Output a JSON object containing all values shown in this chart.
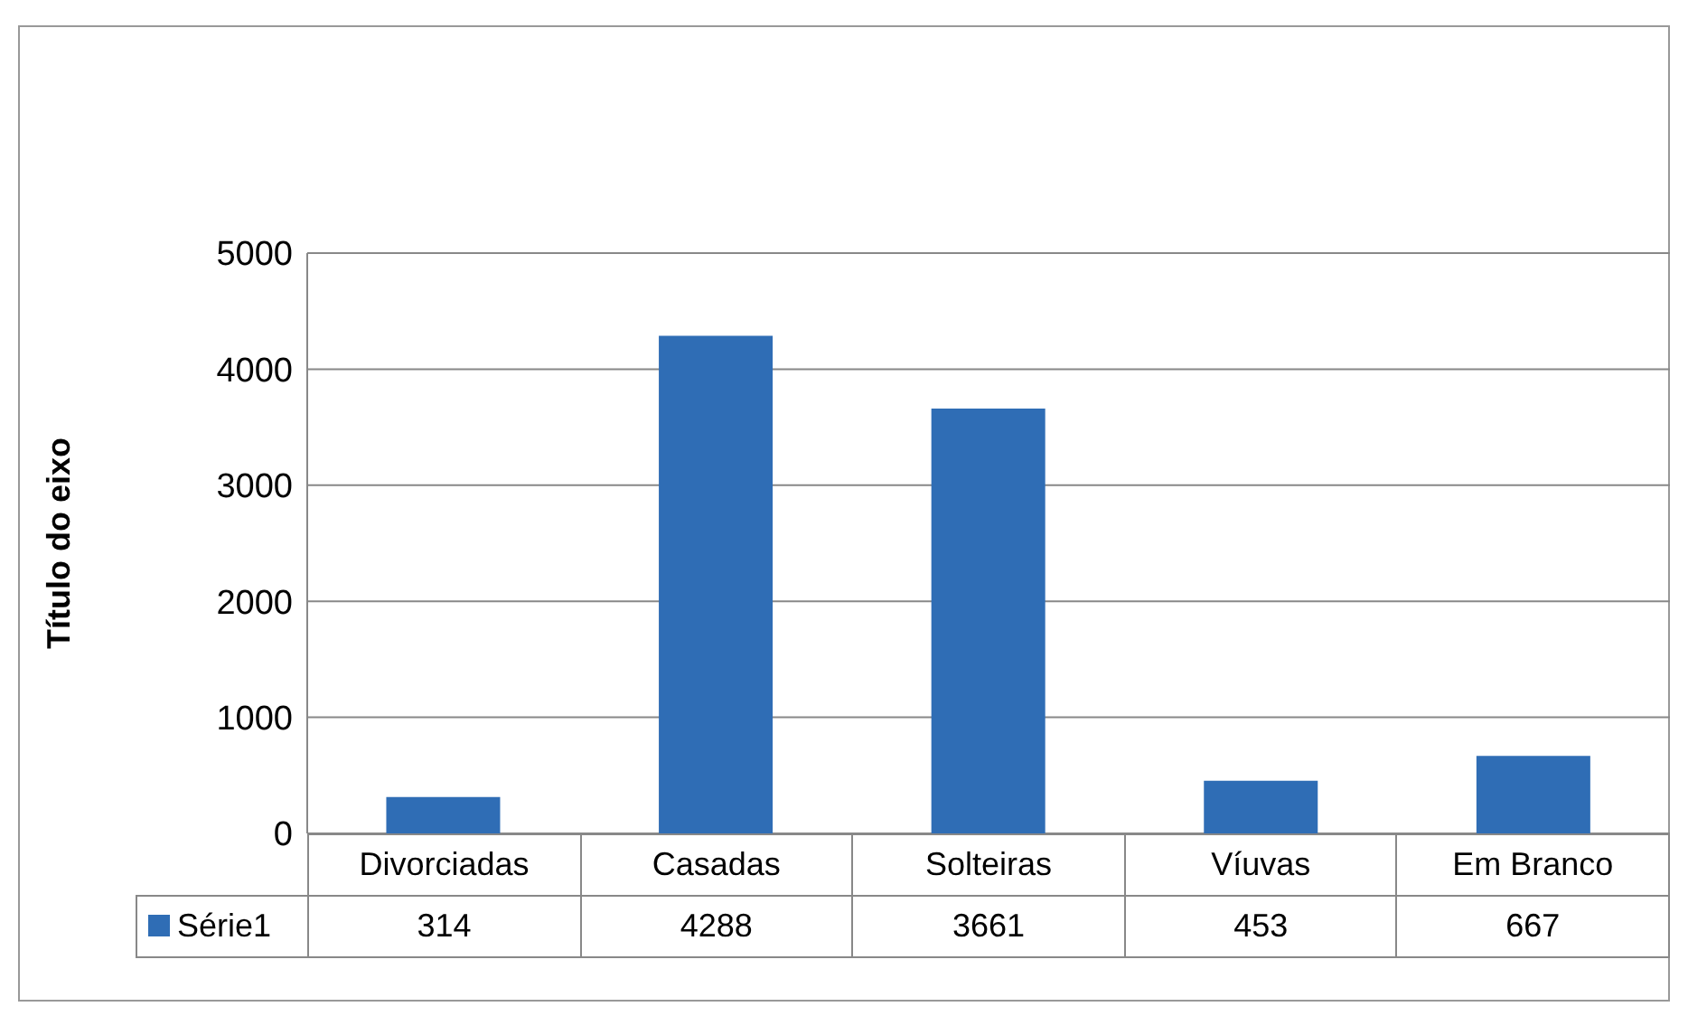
{
  "chart_data": {
    "type": "bar",
    "ylabel": "Título do eixo",
    "categories": [
      "Divorciadas",
      "Casadas",
      "Solteiras",
      "Víuvas",
      "Em Branco"
    ],
    "series": [
      {
        "name": "Série1",
        "color": "#2f6db5",
        "values": [
          314,
          4288,
          3661,
          453,
          667
        ]
      }
    ],
    "ylim": [
      0,
      5000
    ],
    "yticks": [
      0,
      1000,
      2000,
      3000,
      4000,
      5000
    ],
    "grid": "y",
    "legend": "bottom",
    "data_labels": true
  }
}
